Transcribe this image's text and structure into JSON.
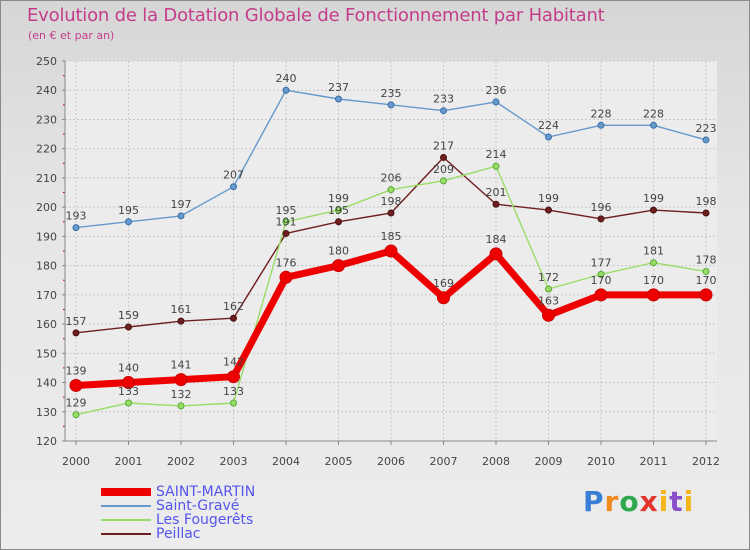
{
  "title": "Evolution de la Dotation Globale de Fonctionnement par Habitant",
  "subtitle": "(en € et par an)",
  "chart_data": {
    "type": "line",
    "title": "Evolution de la Dotation Globale de Fonctionnement par Habitant",
    "subtitle": "(en € et par an)",
    "xlabel": "",
    "ylabel": "",
    "ylim": [
      120,
      250
    ],
    "yticks": [
      120,
      130,
      140,
      150,
      160,
      170,
      180,
      190,
      200,
      210,
      220,
      230,
      240,
      250
    ],
    "grid": true,
    "categories": [
      "2000",
      "2001",
      "2002",
      "2003",
      "2004",
      "2005",
      "2006",
      "2007",
      "2008",
      "2009",
      "2010",
      "2011",
      "2012"
    ],
    "series": [
      {
        "name": "Saint-Gravé",
        "color": "#6699cc",
        "values": [
          193,
          195,
          197,
          207,
          240,
          237,
          235,
          233,
          236,
          224,
          228,
          228,
          223
        ]
      },
      {
        "name": "Peillac",
        "color": "#6e1f1f",
        "values": [
          157,
          159,
          161,
          162,
          191,
          195,
          198,
          217,
          201,
          199,
          196,
          199,
          198
        ]
      },
      {
        "name": "Les Fougerêts",
        "color": "#99dd66",
        "values": [
          129,
          133,
          132,
          133,
          195,
          199,
          206,
          209,
          214,
          172,
          177,
          181,
          178
        ]
      },
      {
        "name": "SAINT-MARTIN",
        "color": "#ee0000",
        "values": [
          139,
          140,
          141,
          142,
          176,
          180,
          185,
          169,
          184,
          163,
          170,
          170,
          170
        ]
      }
    ],
    "legend_order": [
      "SAINT-MARTIN",
      "Saint-Gravé",
      "Les Fougerêts",
      "Peillac"
    ],
    "legend_position": "bottom-left"
  },
  "logo": {
    "p": "P",
    "r": "r",
    "o": "o",
    "x": "x",
    "i": "i",
    "t": "t",
    "i2": "i"
  }
}
